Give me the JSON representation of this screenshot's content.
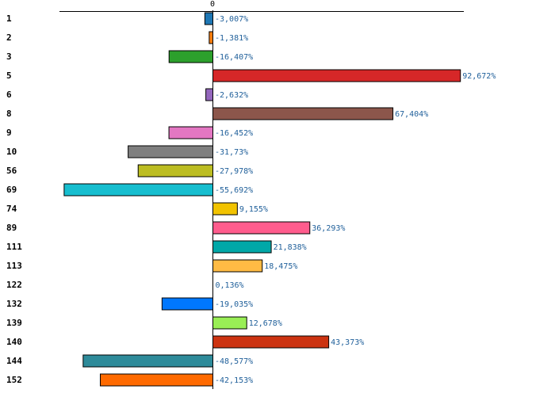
{
  "chart_data": {
    "type": "bar",
    "orientation": "horizontal",
    "title": "",
    "xlabel": "",
    "ylabel": "",
    "xlim": [
      -62,
      100
    ],
    "zero_tick_label": "0",
    "grid": false,
    "categories": [
      "1",
      "2",
      "3",
      "5",
      "6",
      "8",
      "9",
      "10",
      "56",
      "69",
      "74",
      "89",
      "111",
      "113",
      "122",
      "132",
      "139",
      "140",
      "144",
      "152"
    ],
    "values": [
      -3.007,
      -1.381,
      -16.407,
      92.672,
      -2.632,
      67.404,
      -16.452,
      -31.73,
      -27.978,
      -55.692,
      9.155,
      36.293,
      21.838,
      18.475,
      0.136,
      -19.035,
      12.678,
      43.373,
      -48.577,
      -42.153
    ],
    "value_labels": [
      "-3,007%",
      "-1,381%",
      "-16,407%",
      "92,672%",
      "-2,632%",
      "67,404%",
      "-16,452%",
      "-31,73%",
      "-27,978%",
      "-55,692%",
      "9,155%",
      "36,293%",
      "21,838%",
      "18,475%",
      "0,136%",
      "-19,035%",
      "12,678%",
      "43,373%",
      "-48,577%",
      "-42,153%"
    ],
    "colors": [
      "#1f77b4",
      "#ff7f0e",
      "#2ca02c",
      "#d62728",
      "#9467bd",
      "#8c564b",
      "#e377c2",
      "#7f7f7f",
      "#bcbd22",
      "#17becf",
      "#f2c300",
      "#ff5c8d",
      "#00a8a8",
      "#ffbb44",
      "#66ccff",
      "#0077ff",
      "#99ee55",
      "#cc3311",
      "#2e8b9a",
      "#ff6a00"
    ]
  }
}
